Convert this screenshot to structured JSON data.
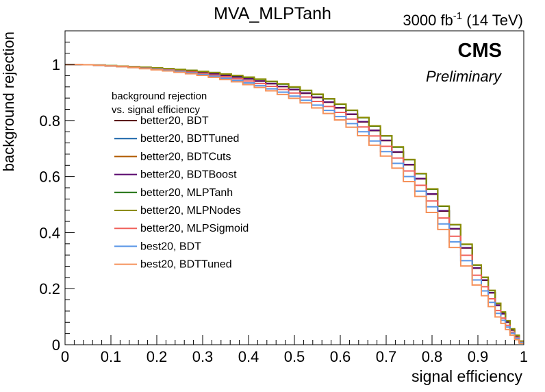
{
  "chart_data": {
    "type": "line",
    "title": "MVA_MLPTanh",
    "lumi_label": "3000 fb",
    "lumi_superscript": "-1",
    "energy_label": " (14 TeV)",
    "experiment_label": "CMS",
    "status_label": "Preliminary",
    "xlabel": "signal efficiency",
    "ylabel": "background rejection",
    "xlim": [
      0,
      1
    ],
    "ylim": [
      0,
      1.12
    ],
    "x_ticks": [
      0,
      0.1,
      0.2,
      0.3,
      0.4,
      0.5,
      0.6,
      0.7,
      0.8,
      0.9,
      1
    ],
    "x_tick_labels": [
      "0",
      "0.1",
      "0.2",
      "0.3",
      "0.4",
      "0.5",
      "0.6",
      "0.7",
      "0.8",
      "0.9",
      "1"
    ],
    "y_ticks": [
      0,
      0.2,
      0.4,
      0.6,
      0.8,
      1
    ],
    "y_tick_labels": [
      "0",
      "0.2",
      "0.4",
      "0.6",
      "0.8",
      "1"
    ],
    "legend_header_line1": "background rejection",
    "legend_header_line2": "vs. signal efficiency",
    "legend_placement": "upper-left",
    "grid": false,
    "x": [
      0.005,
      0.025,
      0.05,
      0.075,
      0.1,
      0.125,
      0.15,
      0.175,
      0.2,
      0.225,
      0.25,
      0.275,
      0.3,
      0.325,
      0.35,
      0.375,
      0.4,
      0.425,
      0.45,
      0.475,
      0.5,
      0.525,
      0.55,
      0.575,
      0.6,
      0.625,
      0.65,
      0.675,
      0.7,
      0.725,
      0.75,
      0.775,
      0.8,
      0.825,
      0.85,
      0.875,
      0.9,
      0.915,
      0.93,
      0.945,
      0.955,
      0.965,
      0.975,
      0.985,
      0.995
    ],
    "series": [
      {
        "name": "better20, BDT",
        "color": "#5a0a0a",
        "values": [
          1.0,
          1.0,
          0.999,
          0.997,
          0.995,
          0.993,
          0.991,
          0.989,
          0.986,
          0.983,
          0.98,
          0.976,
          0.972,
          0.967,
          0.961,
          0.955,
          0.948,
          0.94,
          0.931,
          0.921,
          0.91,
          0.897,
          0.882,
          0.865,
          0.845,
          0.822,
          0.795,
          0.764,
          0.728,
          0.687,
          0.642,
          0.592,
          0.537,
          0.477,
          0.413,
          0.345,
          0.273,
          0.23,
          0.185,
          0.14,
          0.11,
          0.08,
          0.052,
          0.03,
          0.01
        ]
      },
      {
        "name": "better20, BDTTuned",
        "color": "#1864a8",
        "values": [
          1.0,
          1.0,
          0.999,
          0.997,
          0.995,
          0.993,
          0.991,
          0.989,
          0.986,
          0.983,
          0.98,
          0.976,
          0.972,
          0.967,
          0.962,
          0.956,
          0.949,
          0.941,
          0.932,
          0.922,
          0.911,
          0.898,
          0.883,
          0.866,
          0.846,
          0.823,
          0.796,
          0.765,
          0.729,
          0.688,
          0.643,
          0.593,
          0.538,
          0.478,
          0.414,
          0.346,
          0.274,
          0.231,
          0.186,
          0.141,
          0.111,
          0.081,
          0.053,
          0.031,
          0.011
        ]
      },
      {
        "name": "better20, BDTCuts",
        "color": "#b05a00",
        "values": [
          1.0,
          1.0,
          0.999,
          0.997,
          0.995,
          0.993,
          0.991,
          0.989,
          0.986,
          0.983,
          0.98,
          0.976,
          0.972,
          0.967,
          0.962,
          0.956,
          0.949,
          0.941,
          0.932,
          0.922,
          0.911,
          0.898,
          0.883,
          0.866,
          0.846,
          0.823,
          0.796,
          0.765,
          0.729,
          0.688,
          0.643,
          0.593,
          0.538,
          0.478,
          0.414,
          0.346,
          0.274,
          0.231,
          0.186,
          0.141,
          0.111,
          0.081,
          0.053,
          0.031,
          0.011
        ]
      },
      {
        "name": "better20, BDTBoost",
        "color": "#5a0a6e",
        "values": [
          1.0,
          1.0,
          0.999,
          0.997,
          0.995,
          0.993,
          0.991,
          0.989,
          0.986,
          0.983,
          0.98,
          0.976,
          0.972,
          0.967,
          0.962,
          0.956,
          0.949,
          0.941,
          0.932,
          0.922,
          0.911,
          0.898,
          0.883,
          0.866,
          0.846,
          0.823,
          0.796,
          0.765,
          0.729,
          0.688,
          0.643,
          0.593,
          0.538,
          0.478,
          0.414,
          0.346,
          0.274,
          0.231,
          0.186,
          0.141,
          0.111,
          0.081,
          0.053,
          0.031,
          0.011
        ]
      },
      {
        "name": "better20, MLPTanh",
        "color": "#1a6e0a",
        "values": [
          1.0,
          1.0,
          0.999,
          0.998,
          0.996,
          0.994,
          0.992,
          0.99,
          0.988,
          0.985,
          0.982,
          0.979,
          0.975,
          0.971,
          0.966,
          0.96,
          0.954,
          0.947,
          0.939,
          0.93,
          0.919,
          0.907,
          0.893,
          0.877,
          0.858,
          0.836,
          0.81,
          0.78,
          0.745,
          0.705,
          0.66,
          0.61,
          0.555,
          0.494,
          0.428,
          0.358,
          0.284,
          0.24,
          0.193,
          0.147,
          0.116,
          0.085,
          0.056,
          0.033,
          0.012
        ]
      },
      {
        "name": "better20, MLPNodes",
        "color": "#8c8c00",
        "values": [
          1.0,
          1.0,
          0.999,
          0.998,
          0.996,
          0.994,
          0.992,
          0.99,
          0.988,
          0.985,
          0.982,
          0.979,
          0.975,
          0.971,
          0.966,
          0.961,
          0.955,
          0.948,
          0.94,
          0.931,
          0.92,
          0.908,
          0.894,
          0.878,
          0.859,
          0.837,
          0.811,
          0.781,
          0.746,
          0.706,
          0.661,
          0.611,
          0.556,
          0.495,
          0.429,
          0.359,
          0.285,
          0.241,
          0.194,
          0.148,
          0.117,
          0.086,
          0.057,
          0.034,
          0.013
        ]
      },
      {
        "name": "better20, MLPSigmoid",
        "color": "#f0605a",
        "values": [
          1.0,
          1.0,
          0.999,
          0.997,
          0.995,
          0.993,
          0.99,
          0.987,
          0.984,
          0.981,
          0.977,
          0.973,
          0.968,
          0.962,
          0.956,
          0.949,
          0.941,
          0.932,
          0.922,
          0.911,
          0.898,
          0.884,
          0.868,
          0.85,
          0.829,
          0.805,
          0.777,
          0.745,
          0.708,
          0.666,
          0.62,
          0.569,
          0.513,
          0.452,
          0.387,
          0.319,
          0.248,
          0.207,
          0.164,
          0.122,
          0.095,
          0.069,
          0.045,
          0.026,
          0.009
        ]
      },
      {
        "name": "best20, BDT",
        "color": "#5a96e6",
        "values": [
          1.0,
          1.0,
          0.999,
          0.997,
          0.995,
          0.992,
          0.989,
          0.986,
          0.983,
          0.979,
          0.975,
          0.97,
          0.964,
          0.958,
          0.951,
          0.943,
          0.934,
          0.924,
          0.913,
          0.901,
          0.887,
          0.872,
          0.855,
          0.836,
          0.814,
          0.789,
          0.76,
          0.727,
          0.689,
          0.647,
          0.6,
          0.548,
          0.492,
          0.431,
          0.367,
          0.3,
          0.231,
          0.192,
          0.151,
          0.112,
          0.087,
          0.063,
          0.041,
          0.023,
          0.008
        ]
      },
      {
        "name": "best20, BDTTuned",
        "color": "#f5915a",
        "values": [
          1.0,
          1.0,
          0.999,
          0.997,
          0.995,
          0.992,
          0.989,
          0.985,
          0.981,
          0.977,
          0.972,
          0.967,
          0.961,
          0.954,
          0.946,
          0.938,
          0.928,
          0.918,
          0.906,
          0.893,
          0.879,
          0.863,
          0.845,
          0.825,
          0.802,
          0.776,
          0.746,
          0.712,
          0.673,
          0.63,
          0.582,
          0.529,
          0.472,
          0.411,
          0.347,
          0.281,
          0.213,
          0.175,
          0.136,
          0.099,
          0.076,
          0.054,
          0.034,
          0.018,
          0.005
        ]
      }
    ]
  }
}
